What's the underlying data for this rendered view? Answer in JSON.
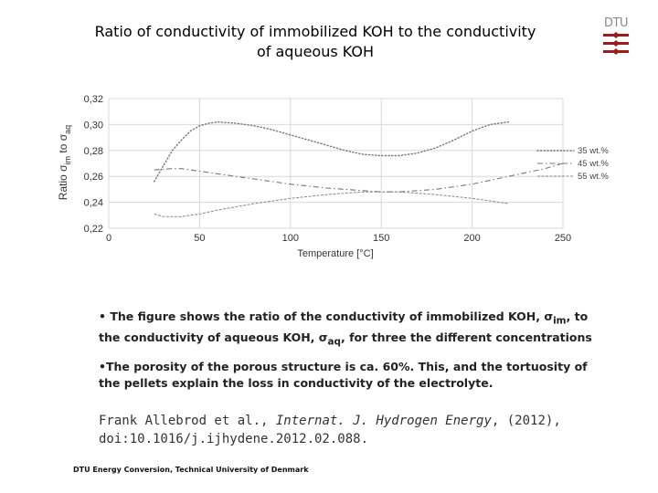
{
  "slide": {
    "title_line1": "Ratio of conductivity of immobilized KOH to the conductivity",
    "title_line2": "of aqueous KOH",
    "logo_text": "DTU",
    "logo_color": "#9b1c1c",
    "bullet1_a": "• The figure shows the ratio of the conductivity of immobilized KOH, σ",
    "bullet1_sub1": "im",
    "bullet1_b": ", to the conductivity of aqueous KOH, σ",
    "bullet1_sub2": "aq",
    "bullet1_c": ", for three the different concentrations",
    "bullet2": "•The porosity of the porous structure is ca. 60%. This, and the tortuosity of the pellets explain the loss in conductivity of the electrolyte.",
    "ref_a": "Frank Allebrod et al., ",
    "ref_journal": "Internat. J. Hydrogen Energy",
    "ref_b": ", (2012),",
    "ref_doi": "doi:10.1016/j.ijhydene.2012.02.088.",
    "footer": "DTU Energy Conversion, Technical University of Denmark"
  },
  "chart_data": {
    "type": "line",
    "title": "",
    "xlabel": "Temperature [°C]",
    "ylabel_prefix": "Ratio σ",
    "ylabel_sub1": "im",
    "ylabel_mid": " to σ",
    "ylabel_sub2": "aq",
    "xlim": [
      0,
      250
    ],
    "ylim": [
      0.22,
      0.32
    ],
    "xticks": [
      0,
      50,
      100,
      150,
      200,
      250
    ],
    "xtick_labels": [
      "0",
      "50",
      "100",
      "150",
      "200",
      "250"
    ],
    "yticks": [
      0.22,
      0.24,
      0.26,
      0.28,
      0.3,
      0.32
    ],
    "ytick_labels": [
      "0,22",
      "0,24",
      "0,26",
      "0,28",
      "0,30",
      "0,32"
    ],
    "grid": true,
    "legend_position": "right",
    "series": [
      {
        "name": "35 wt.%",
        "style": "dotted",
        "x": [
          25,
          30,
          35,
          40,
          45,
          50,
          55,
          60,
          70,
          80,
          90,
          100,
          110,
          120,
          130,
          140,
          150,
          160,
          170,
          180,
          190,
          200,
          210,
          220
        ],
        "y": [
          0.256,
          0.268,
          0.28,
          0.288,
          0.295,
          0.299,
          0.301,
          0.302,
          0.301,
          0.299,
          0.296,
          0.292,
          0.288,
          0.284,
          0.28,
          0.277,
          0.276,
          0.276,
          0.278,
          0.282,
          0.288,
          0.295,
          0.3,
          0.302
        ]
      },
      {
        "name": "45 wt.%",
        "style": "dashdot",
        "x": [
          25,
          35,
          40,
          50,
          60,
          80,
          100,
          120,
          140,
          150,
          160,
          180,
          200,
          220,
          240,
          250
        ],
        "y": [
          0.265,
          0.266,
          0.266,
          0.264,
          0.262,
          0.258,
          0.254,
          0.251,
          0.249,
          0.248,
          0.248,
          0.25,
          0.254,
          0.26,
          0.266,
          0.27
        ]
      },
      {
        "name": "55 wt.%",
        "style": "solid-thin",
        "x": [
          25,
          30,
          40,
          50,
          60,
          80,
          100,
          120,
          140,
          150,
          160,
          180,
          200,
          220
        ],
        "y": [
          0.231,
          0.229,
          0.229,
          0.231,
          0.234,
          0.239,
          0.243,
          0.246,
          0.248,
          0.248,
          0.248,
          0.246,
          0.243,
          0.239
        ]
      }
    ]
  }
}
